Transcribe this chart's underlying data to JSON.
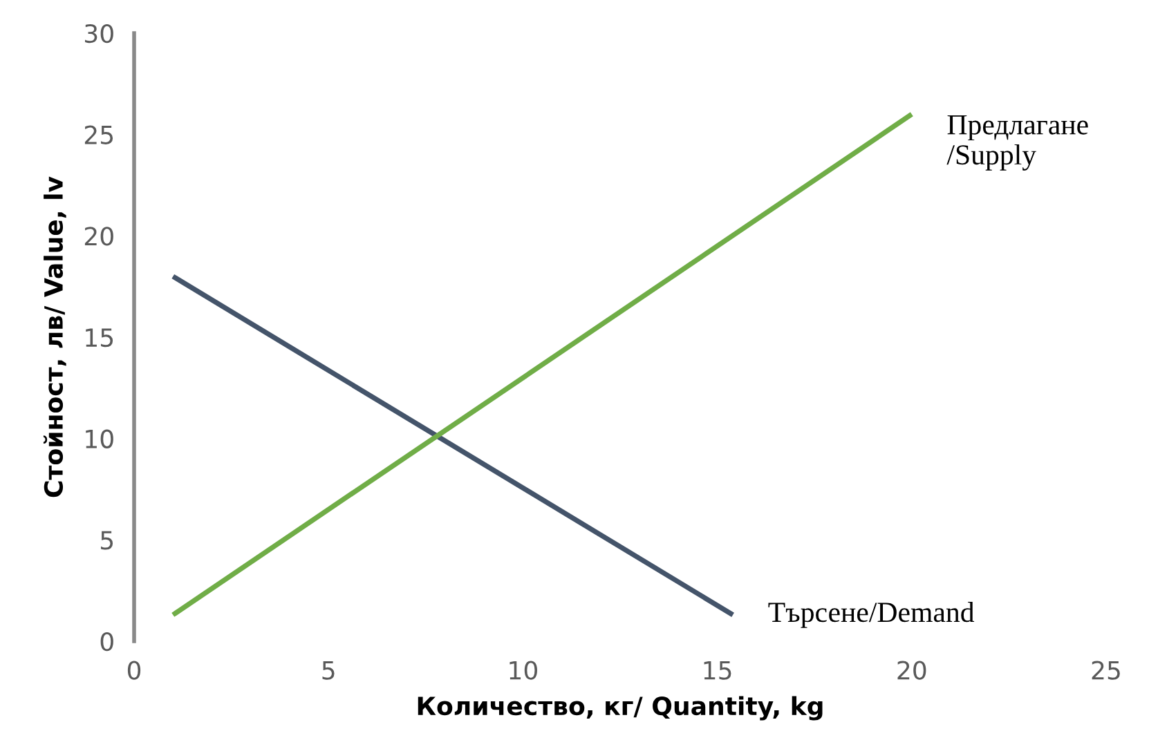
{
  "chart_data": {
    "type": "line",
    "xlabel": "Количество, кг/ Quantity, kg",
    "ylabel": "Стойност, лв/ Value, lv",
    "series": [
      {
        "name": "Търсене/Demand",
        "color": "#44546a",
        "x": [
          1,
          15.4
        ],
        "values": [
          18,
          1.3
        ]
      },
      {
        "name": "Предлагане\n/Supply",
        "color": "#70ad47",
        "x": [
          1,
          20
        ],
        "values": [
          1.3,
          26
        ]
      }
    ],
    "xlim": [
      0,
      25
    ],
    "xticks": [
      0,
      5,
      10,
      15,
      20,
      25
    ],
    "ylim": [
      0,
      30
    ],
    "yticks": [
      0,
      5,
      10,
      15,
      20,
      25,
      30
    ],
    "grid": false,
    "legend": false,
    "marker": "none",
    "line_style": "solid"
  }
}
